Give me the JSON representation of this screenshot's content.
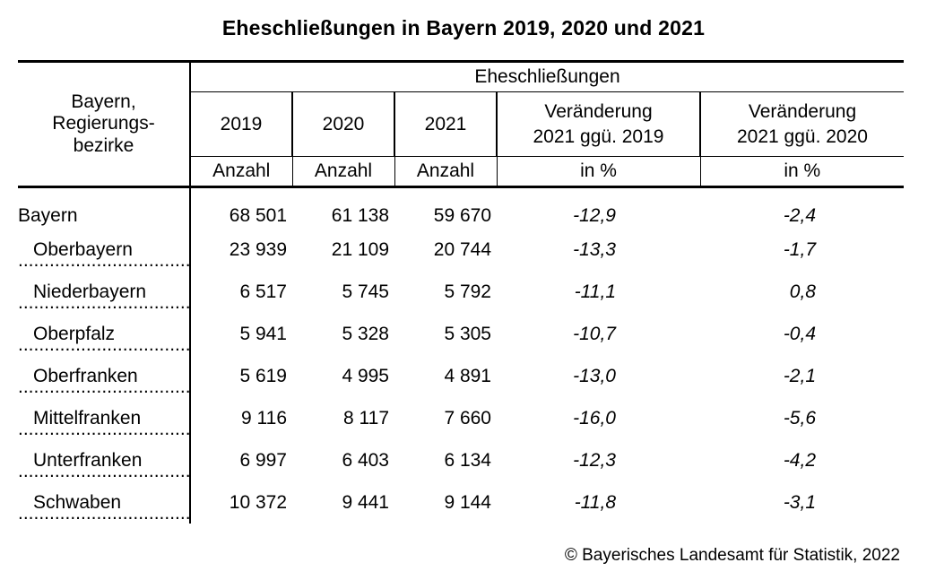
{
  "title": "Eheschließungen in Bayern 2019, 2020 und 2021",
  "table": {
    "region_header": [
      "Bayern,",
      "Regierungs-",
      "bezirke"
    ],
    "group_header": "Eheschließungen",
    "year_headers": [
      "2019",
      "2020",
      "2021"
    ],
    "change_headers": [
      [
        "Veränderung",
        "2021 ggü. 2019"
      ],
      [
        "Veränderung",
        "2021 ggü. 2020"
      ]
    ],
    "unit_headers": [
      "Anzahl",
      "Anzahl",
      "Anzahl",
      "in %",
      "in %"
    ],
    "rows": [
      {
        "region": "Bayern",
        "values": [
          "68 501",
          "61 138",
          "59 670"
        ],
        "change_2019": "-12,9",
        "change_2020": "-2,4"
      },
      {
        "region": "Oberbayern",
        "values": [
          "23 939",
          "21 109",
          "20 744"
        ],
        "change_2019": "-13,3",
        "change_2020": "-1,7"
      },
      {
        "region": "Niederbayern",
        "values": [
          "6 517",
          "5 745",
          "5 792"
        ],
        "change_2019": "-11,1",
        "change_2020": "0,8"
      },
      {
        "region": "Oberpfalz",
        "values": [
          "5 941",
          "5 328",
          "5 305"
        ],
        "change_2019": "-10,7",
        "change_2020": "-0,4"
      },
      {
        "region": "Oberfranken",
        "values": [
          "5 619",
          "4 995",
          "4 891"
        ],
        "change_2019": "-13,0",
        "change_2020": "-2,1"
      },
      {
        "region": "Mittelfranken",
        "values": [
          "9 116",
          "8 117",
          "7 660"
        ],
        "change_2019": "-16,0",
        "change_2020": "-5,6"
      },
      {
        "region": "Unterfranken",
        "values": [
          "6 997",
          "6 403",
          "6 134"
        ],
        "change_2019": "-12,3",
        "change_2020": "-4,2"
      },
      {
        "region": "Schwaben",
        "values": [
          "10 372",
          "9 441",
          "9 144"
        ],
        "change_2019": "-11,8",
        "change_2020": "-3,1"
      }
    ]
  },
  "leader_dots": "..................................................",
  "copyright": "© Bayerisches Landesamt für Statistik, 2022"
}
